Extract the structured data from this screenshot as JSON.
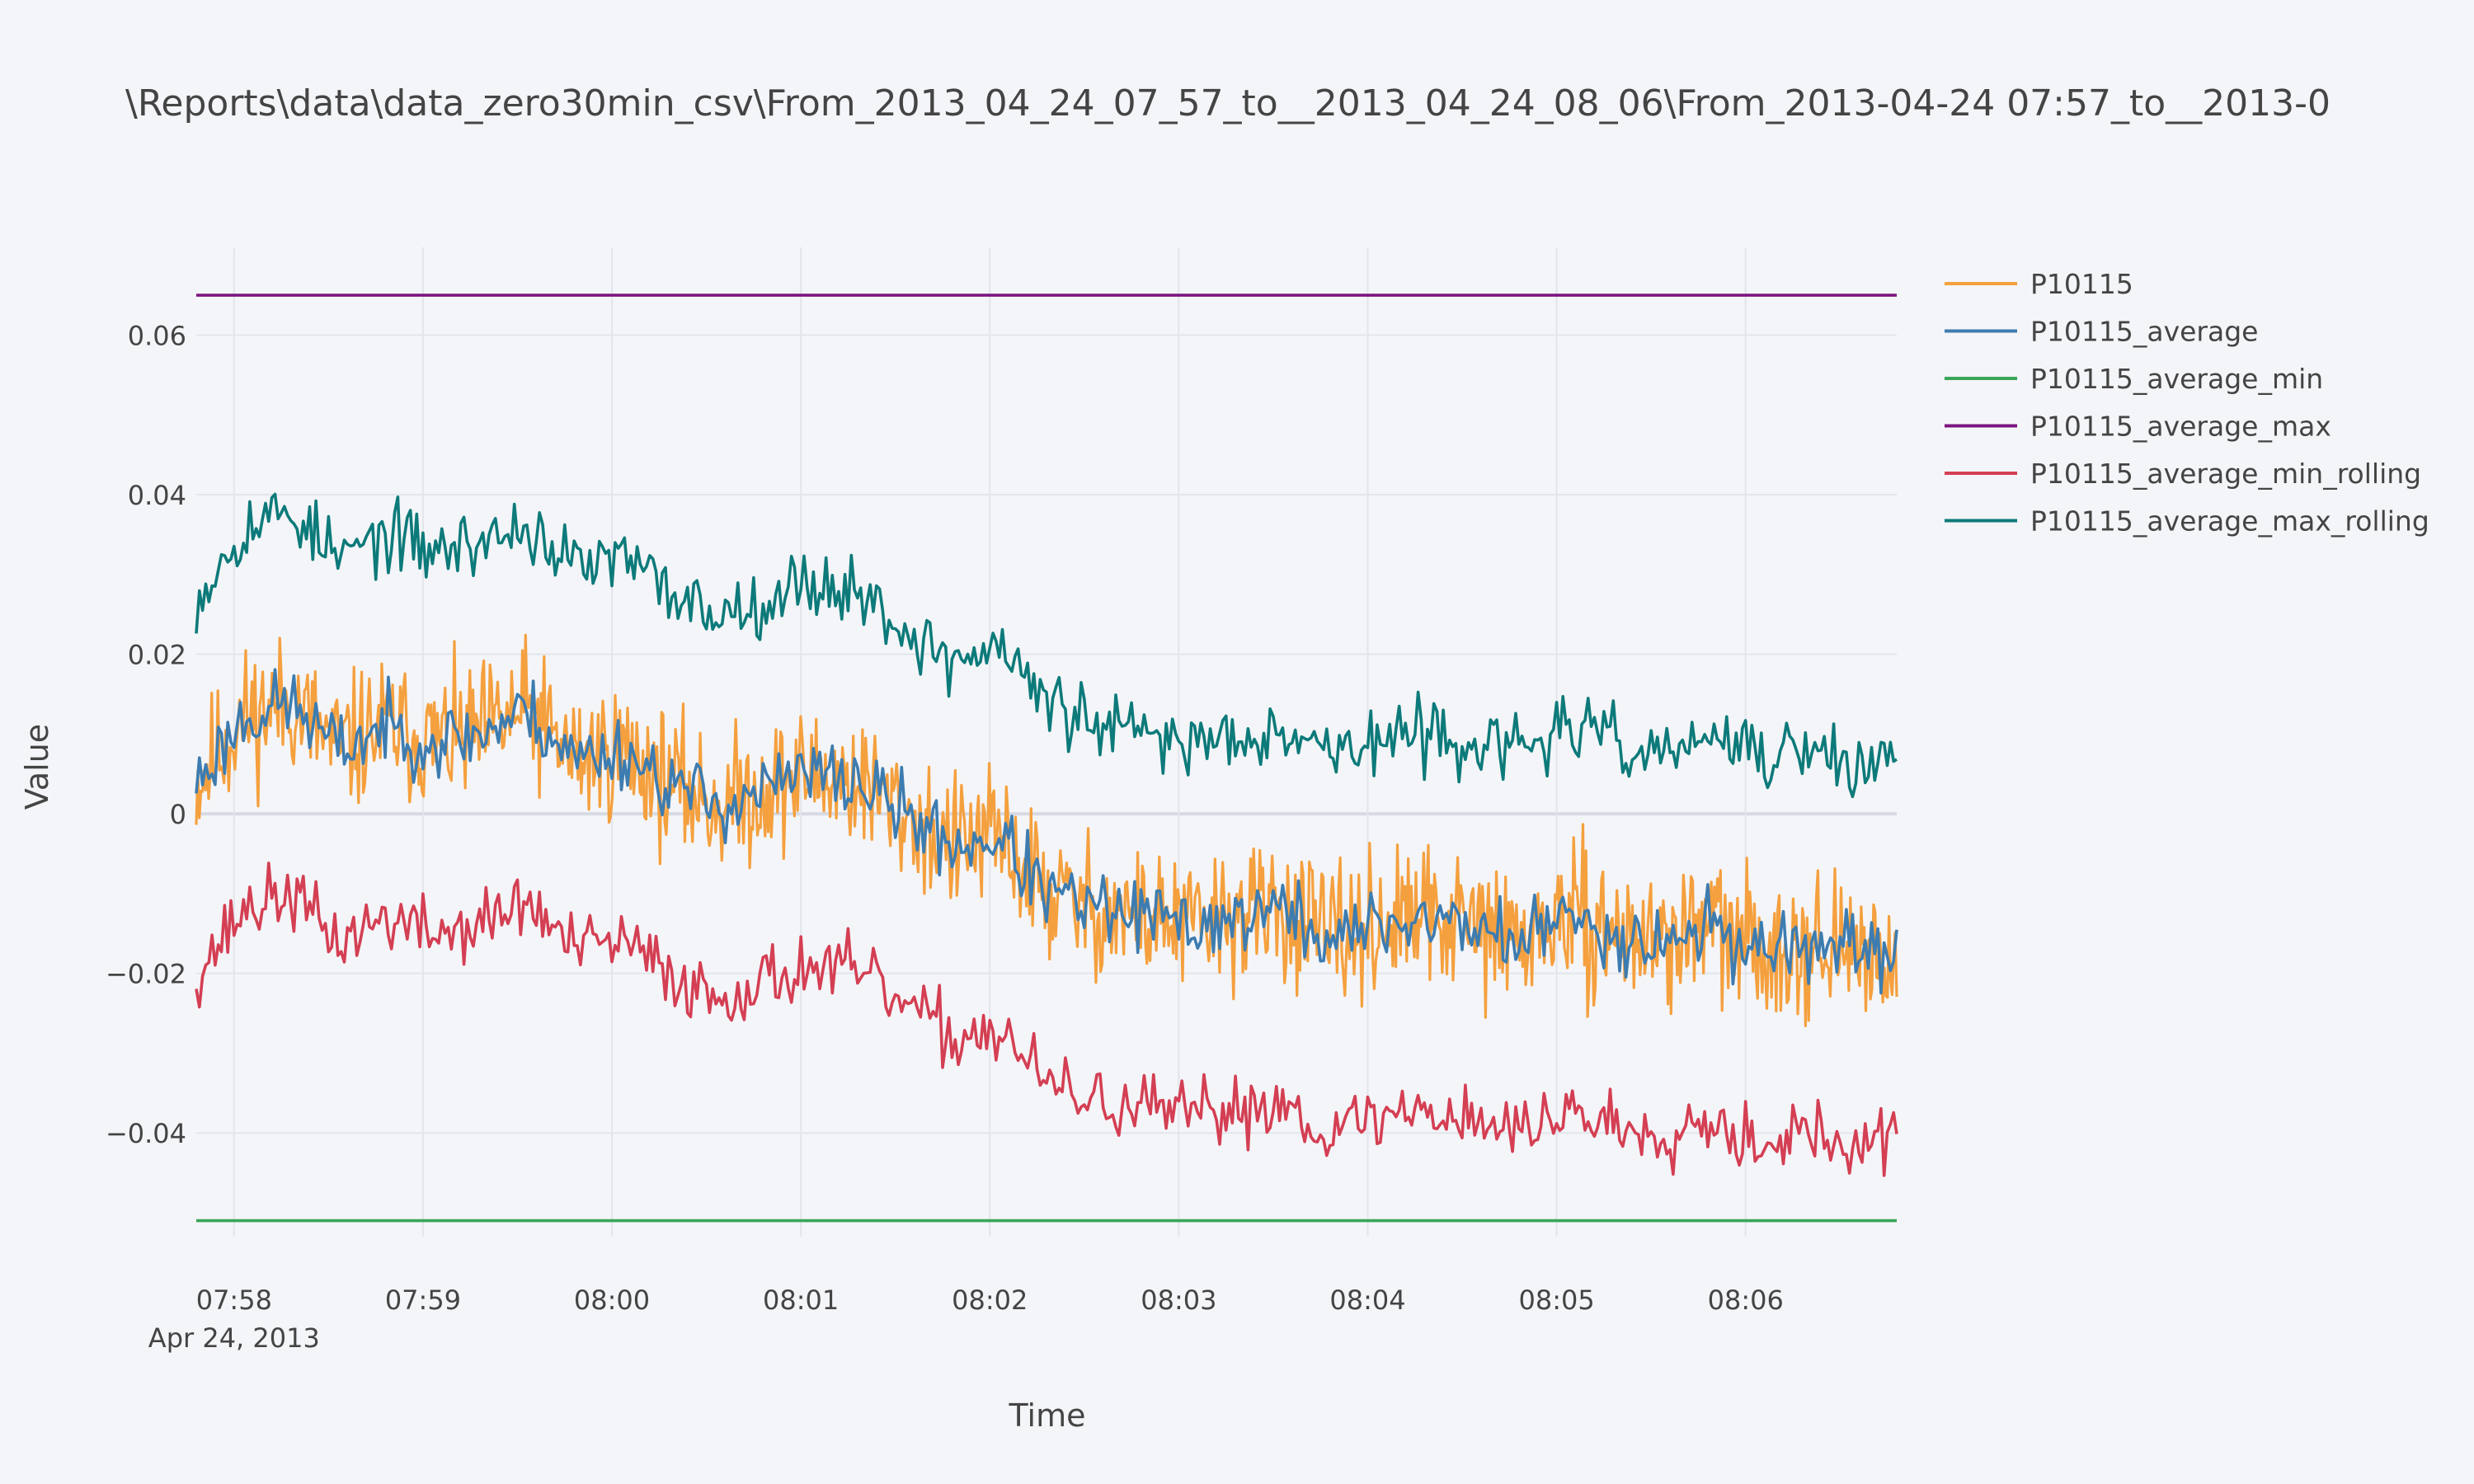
{
  "chart_data": {
    "type": "line",
    "title": "\\Reports\\data\\data_zero30min_csv\\From_2013_04_24_07_57_to__2013_04_24_08_06\\From_2013-04-24 07:57_to__2013-0",
    "xlabel": "Time",
    "ylabel": "Value",
    "x_range": [
      "2013-04-24 07:57:48",
      "2013-04-24 08:06:48"
    ],
    "x_ticks": [
      "07:58",
      "07:59",
      "08:00",
      "08:01",
      "08:02",
      "08:03",
      "08:04",
      "08:05",
      "08:06"
    ],
    "x_date_label": "Apr 24, 2013",
    "ylim": [
      -0.053,
      0.071
    ],
    "y_ticks": [
      0.06,
      0.04,
      0.02,
      0,
      -0.02,
      -0.04
    ],
    "y_tick_labels": [
      "0.06",
      "0.04",
      "0.02",
      "0",
      "−0.02",
      "−0.04"
    ],
    "grid": true,
    "legend_position": "right",
    "series": [
      {
        "name": "P10115",
        "color": "#f5a03e",
        "x_minutes": [
          0.0,
          0.25,
          0.5,
          0.75,
          1.0,
          1.25,
          1.5,
          1.75,
          2.0,
          2.25,
          2.5,
          2.75,
          3.0,
          3.25,
          3.5,
          3.75,
          4.0,
          4.25,
          4.5,
          4.75,
          5.0,
          5.25,
          5.5,
          5.75,
          6.0,
          6.25,
          6.5,
          6.75,
          7.0,
          7.25,
          7.5,
          7.75,
          8.0,
          8.25,
          8.5,
          8.75,
          9.0
        ],
        "values": [
          0.004,
          0.012,
          0.014,
          0.008,
          0.011,
          0.009,
          0.01,
          0.013,
          0.007,
          0.008,
          0.004,
          0.001,
          0.003,
          0.005,
          0.004,
          0.0,
          -0.004,
          -0.003,
          -0.01,
          -0.012,
          -0.013,
          -0.014,
          -0.013,
          -0.012,
          -0.016,
          -0.014,
          -0.013,
          -0.014,
          -0.016,
          -0.013,
          -0.015,
          -0.016,
          -0.014,
          -0.017,
          -0.016,
          -0.018,
          -0.017
        ]
      },
      {
        "name": "P10115_average",
        "color": "#3d7cb0",
        "x_minutes": [
          0.0,
          0.25,
          0.5,
          0.75,
          1.0,
          1.25,
          1.5,
          1.75,
          2.0,
          2.25,
          2.5,
          2.75,
          3.0,
          3.25,
          3.5,
          3.75,
          4.0,
          4.25,
          4.5,
          4.75,
          5.0,
          5.25,
          5.5,
          5.75,
          6.0,
          6.25,
          6.5,
          6.75,
          7.0,
          7.25,
          7.5,
          7.75,
          8.0,
          8.25,
          8.5,
          8.75,
          9.0
        ],
        "values": [
          0.004,
          0.012,
          0.014,
          0.008,
          0.011,
          0.009,
          0.01,
          0.013,
          0.007,
          0.008,
          0.004,
          0.001,
          0.003,
          0.005,
          0.004,
          0.0,
          -0.004,
          -0.003,
          -0.01,
          -0.012,
          -0.013,
          -0.014,
          -0.013,
          -0.012,
          -0.016,
          -0.014,
          -0.013,
          -0.014,
          -0.016,
          -0.013,
          -0.015,
          -0.016,
          -0.014,
          -0.017,
          -0.016,
          -0.018,
          -0.017
        ]
      },
      {
        "name": "P10115_average_min",
        "color": "#3aa55a",
        "x_minutes": [
          0.0,
          9.0
        ],
        "values": [
          -0.051,
          -0.051
        ]
      },
      {
        "name": "P10115_average_max",
        "color": "#7c1580",
        "x_minutes": [
          0.0,
          9.0
        ],
        "values": [
          0.065,
          0.065
        ]
      },
      {
        "name": "P10115_average_min_rolling",
        "color": "#d43f53",
        "x_minutes": [
          0.0,
          0.25,
          0.5,
          0.75,
          1.0,
          1.25,
          1.5,
          1.75,
          2.0,
          2.25,
          2.5,
          2.75,
          3.0,
          3.25,
          3.5,
          3.75,
          4.0,
          4.25,
          4.5,
          4.75,
          5.0,
          5.25,
          5.5,
          5.75,
          6.0,
          6.25,
          6.5,
          6.75,
          7.0,
          7.25,
          7.5,
          7.75,
          8.0,
          8.25,
          8.5,
          8.75,
          9.0
        ],
        "values": [
          -0.02,
          -0.012,
          -0.01,
          -0.016,
          -0.013,
          -0.015,
          -0.014,
          -0.011,
          -0.017,
          -0.016,
          -0.02,
          -0.023,
          -0.021,
          -0.019,
          -0.02,
          -0.024,
          -0.028,
          -0.027,
          -0.034,
          -0.036,
          -0.037,
          -0.038,
          -0.037,
          -0.036,
          -0.04,
          -0.038,
          -0.037,
          -0.038,
          -0.04,
          -0.037,
          -0.039,
          -0.04,
          -0.038,
          -0.041,
          -0.04,
          -0.042,
          -0.041
        ]
      },
      {
        "name": "P10115_average_max_rolling",
        "color": "#0d7a7a",
        "x_minutes": [
          0.0,
          0.25,
          0.5,
          0.75,
          1.0,
          1.25,
          1.5,
          1.75,
          2.0,
          2.25,
          2.5,
          2.75,
          3.0,
          3.25,
          3.5,
          3.75,
          4.0,
          4.25,
          4.5,
          4.75,
          5.0,
          5.25,
          5.5,
          5.75,
          6.0,
          6.25,
          6.5,
          6.75,
          7.0,
          7.25,
          7.5,
          7.75,
          8.0,
          8.25,
          8.5,
          8.75,
          9.0
        ],
        "values": [
          0.027,
          0.036,
          0.038,
          0.032,
          0.035,
          0.033,
          0.034,
          0.036,
          0.031,
          0.032,
          0.028,
          0.025,
          0.027,
          0.029,
          0.028,
          0.023,
          0.019,
          0.021,
          0.014,
          0.011,
          0.01,
          0.009,
          0.01,
          0.011,
          0.008,
          0.009,
          0.01,
          0.009,
          0.008,
          0.011,
          0.009,
          0.007,
          0.01,
          0.007,
          0.008,
          0.006,
          0.007
        ]
      }
    ]
  }
}
